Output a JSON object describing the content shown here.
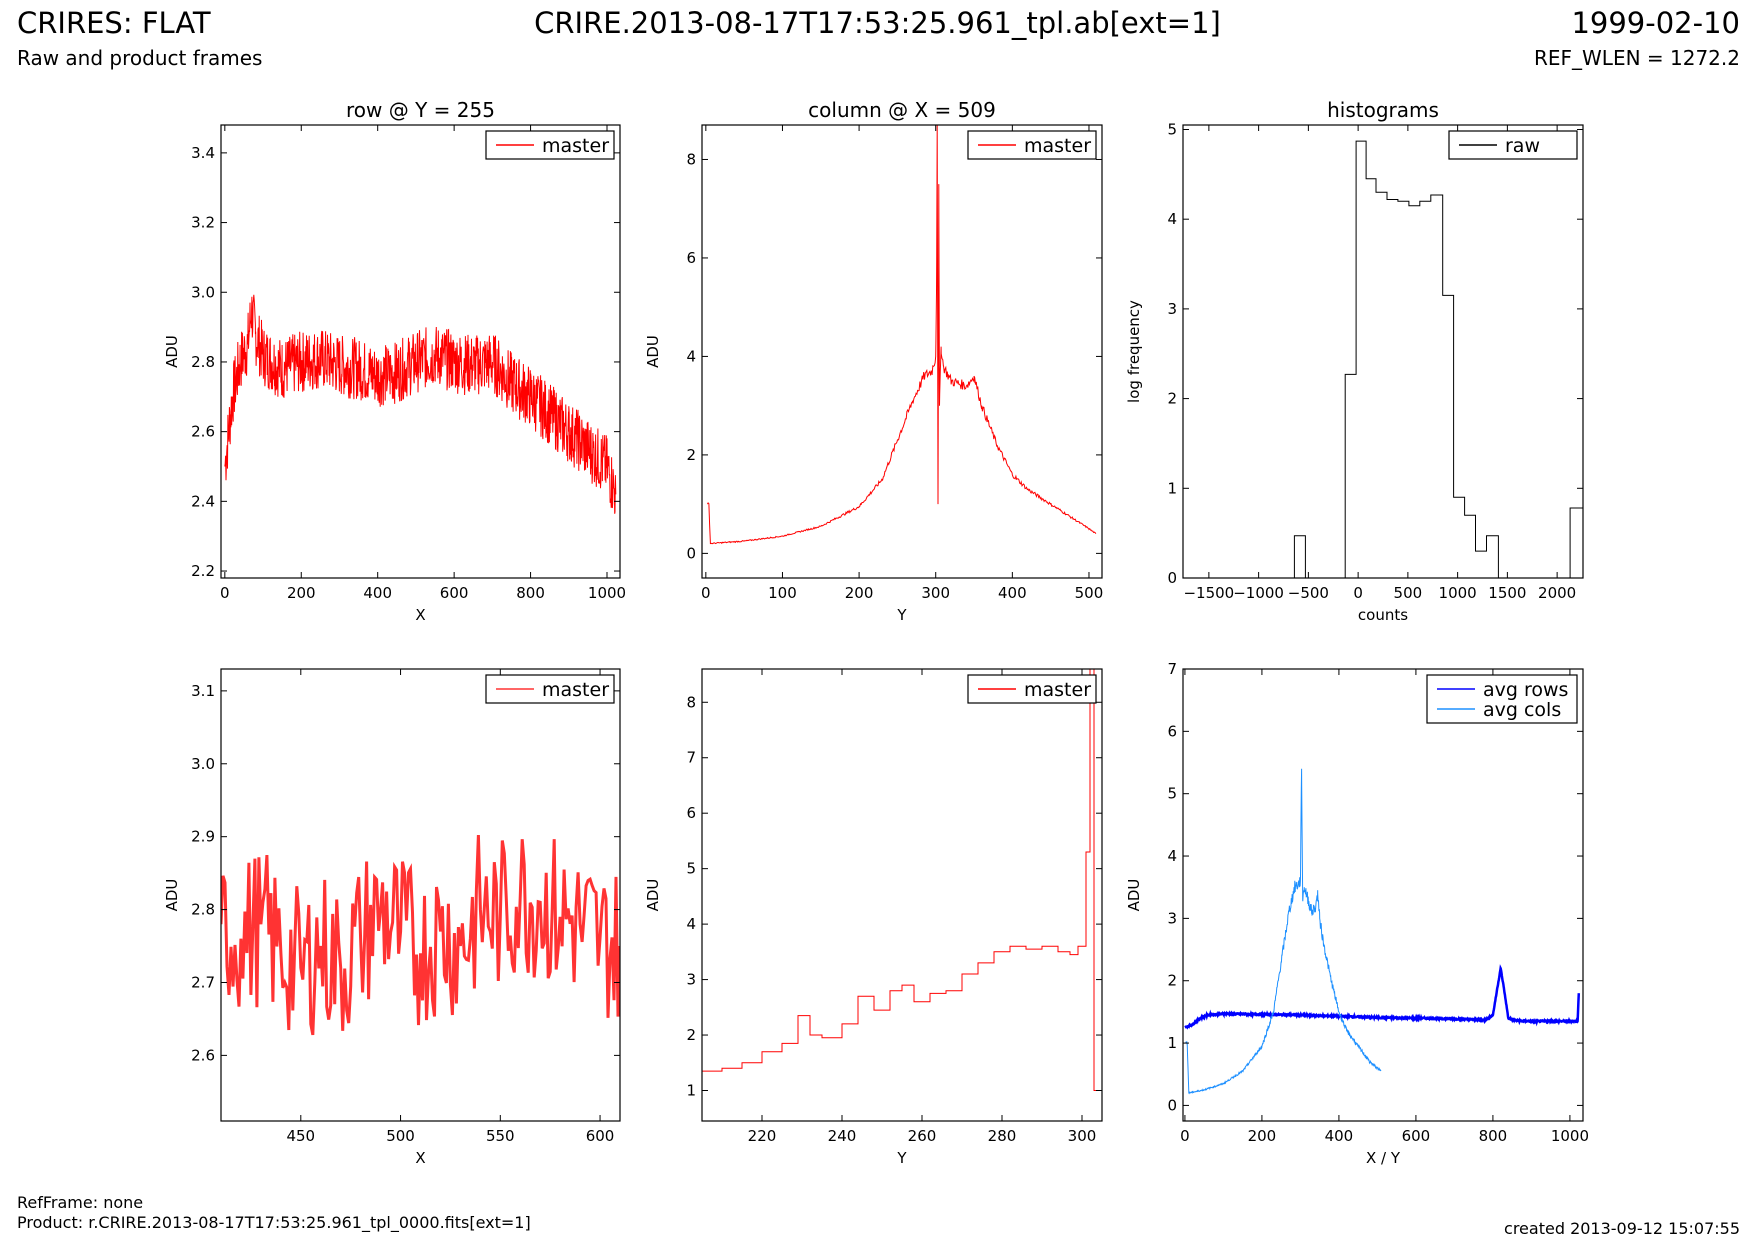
{
  "header": {
    "title": "CRIRES: FLAT",
    "subtitle": "Raw and product frames",
    "center": "CRIRE.2013-08-17T17:53:25.961_tpl.ab[ext=1]",
    "date": "1999-02-10",
    "ref_wlen": "REF_WLEN = 1272.2"
  },
  "footer": {
    "ref_frame": "RefFrame: none",
    "product": "Product: r.CRIRE.2013-08-17T17:53:25.961_tpl_0000.fits[ext=1]",
    "created": "created 2013-09-12 15:07:55"
  },
  "colors": {
    "red": "#ff0000",
    "red_light": "#ff3333",
    "blue": "#0000ff",
    "lightblue": "#1e90ff",
    "black": "#000000"
  },
  "chart_data": [
    {
      "type": "line",
      "title": "row @ Y = 255",
      "xlabel": "X",
      "ylabel": "ADU",
      "xlim": [
        -10,
        1034
      ],
      "ylim": [
        2.18,
        3.48
      ],
      "xticks": [
        0,
        200,
        400,
        600,
        800,
        1000
      ],
      "yticks": [
        2.2,
        2.4,
        2.6,
        2.8,
        3.0,
        3.2,
        3.4
      ],
      "ytick_labels": [
        "2.2",
        "2.4",
        "2.6",
        "2.8",
        "3.0",
        "3.2",
        "3.4"
      ],
      "legend": "top-right",
      "series": [
        {
          "name": "master",
          "color": "#ff0000",
          "x": [
            0,
            20,
            40,
            60,
            70,
            80,
            100,
            150,
            200,
            250,
            300,
            350,
            400,
            450,
            500,
            550,
            600,
            650,
            700,
            750,
            800,
            850,
            900,
            950,
            1000,
            1023
          ],
          "y": [
            2.5,
            2.7,
            2.8,
            2.85,
            2.95,
            2.88,
            2.82,
            2.78,
            2.8,
            2.81,
            2.79,
            2.78,
            2.76,
            2.77,
            2.8,
            2.82,
            2.8,
            2.79,
            2.8,
            2.74,
            2.7,
            2.65,
            2.6,
            2.55,
            2.5,
            2.42
          ]
        }
      ]
    },
    {
      "type": "line",
      "title": "column @ X = 509",
      "xlabel": "Y",
      "ylabel": "ADU",
      "xlim": [
        -5,
        517
      ],
      "ylim": [
        -0.5,
        8.7
      ],
      "xticks": [
        0,
        100,
        200,
        300,
        400,
        500
      ],
      "yticks": [
        0,
        2,
        4,
        6,
        8
      ],
      "ytick_labels": [
        "0",
        "2",
        "4",
        "6",
        "8"
      ],
      "legend": "top-right",
      "series": [
        {
          "name": "master",
          "color": "#ff0000",
          "x": [
            2,
            4,
            6,
            50,
            100,
            150,
            200,
            230,
            250,
            270,
            285,
            295,
            300,
            301,
            302,
            303,
            304,
            305,
            306,
            307,
            310,
            320,
            340,
            350,
            360,
            380,
            400,
            420,
            450,
            480,
            500,
            509
          ],
          "y": [
            1.0,
            1.0,
            0.2,
            0.25,
            0.35,
            0.55,
            0.95,
            1.5,
            2.3,
            3.1,
            3.6,
            3.7,
            4.0,
            5.3,
            8.7,
            1.0,
            7.5,
            3.0,
            3.7,
            4.2,
            3.8,
            3.5,
            3.4,
            3.6,
            3.0,
            2.2,
            1.6,
            1.3,
            1.0,
            0.7,
            0.5,
            0.4
          ]
        }
      ]
    },
    {
      "type": "line",
      "title": "histograms",
      "xlabel": "counts",
      "ylabel": "log frequency",
      "xlim": [
        -1760,
        2260
      ],
      "ylim": [
        0,
        5.05
      ],
      "xticks": [
        -1500,
        -1000,
        -500,
        0,
        500,
        1000,
        1500,
        2000
      ],
      "yticks": [
        0,
        1,
        2,
        3,
        4,
        5
      ],
      "ytick_labels": [
        "0",
        "1",
        "2",
        "3",
        "4",
        "5"
      ],
      "legend": "top-right",
      "series": [
        {
          "name": "raw",
          "color": "#000000",
          "step": true,
          "x": [
            -1760,
            -640,
            -640,
            -530,
            -530,
            -130,
            -130,
            -20,
            -20,
            80,
            80,
            180,
            180,
            290,
            290,
            400,
            400,
            510,
            510,
            620,
            620,
            730,
            730,
            850,
            850,
            960,
            960,
            1070,
            1070,
            1180,
            1180,
            1290,
            1290,
            1410,
            1410,
            2130,
            2130,
            2260
          ],
          "y": [
            0,
            0,
            0.47,
            0.47,
            0,
            0,
            2.27,
            2.27,
            4.87,
            4.87,
            4.45,
            4.45,
            4.3,
            4.3,
            4.22,
            4.22,
            4.2,
            4.2,
            4.15,
            4.15,
            4.2,
            4.2,
            4.27,
            4.27,
            3.15,
            3.15,
            0.9,
            0.9,
            0.7,
            0.7,
            0.3,
            0.3,
            0.47,
            0.47,
            0,
            0,
            0.78,
            0.78
          ]
        }
      ]
    },
    {
      "type": "line",
      "xlabel": "X",
      "ylabel": "ADU",
      "xlim": [
        410,
        610
      ],
      "ylim": [
        2.51,
        3.13
      ],
      "xticks": [
        450,
        500,
        550,
        600
      ],
      "yticks": [
        2.6,
        2.7,
        2.8,
        2.9,
        3.0,
        3.1
      ],
      "ytick_labels": [
        "2.6",
        "2.7",
        "2.8",
        "2.9",
        "3.0",
        "3.1"
      ],
      "legend": "top-right",
      "series": [
        {
          "name": "master",
          "color": "#ff3333",
          "x": [
            410,
            420,
            430,
            440,
            450,
            460,
            470,
            480,
            490,
            500,
            510,
            520,
            530,
            540,
            550,
            560,
            570,
            580,
            590,
            600,
            610
          ],
          "y": [
            2.78,
            2.76,
            2.78,
            2.74,
            2.72,
            2.75,
            2.72,
            2.76,
            2.8,
            2.77,
            2.74,
            2.77,
            2.75,
            2.8,
            2.79,
            2.82,
            2.81,
            2.79,
            2.78,
            2.76,
            2.75
          ]
        }
      ]
    },
    {
      "type": "line",
      "xlabel": "Y",
      "ylabel": "ADU",
      "xlim": [
        205,
        305
      ],
      "ylim": [
        0.45,
        8.6
      ],
      "xticks": [
        220,
        240,
        260,
        280,
        300
      ],
      "yticks": [
        1,
        2,
        3,
        4,
        5,
        6,
        7,
        8
      ],
      "ytick_labels": [
        "1",
        "2",
        "3",
        "4",
        "5",
        "6",
        "7",
        "8"
      ],
      "legend": "top-right",
      "series": [
        {
          "name": "master",
          "color": "#ff0000",
          "step": true,
          "x": [
            205,
            210,
            215,
            220,
            225,
            229,
            232,
            235,
            240,
            244,
            248,
            252,
            255,
            258,
            262,
            266,
            270,
            274,
            278,
            282,
            286,
            290,
            294,
            297,
            299,
            301,
            302,
            303,
            303.5,
            305
          ],
          "y": [
            1.35,
            1.4,
            1.5,
            1.7,
            1.85,
            2.35,
            2.0,
            1.95,
            2.2,
            2.7,
            2.45,
            2.8,
            2.9,
            2.6,
            2.75,
            2.8,
            3.1,
            3.3,
            3.5,
            3.6,
            3.55,
            3.6,
            3.5,
            3.45,
            3.6,
            5.3,
            8.6,
            1.0,
            1.0,
            1.0
          ]
        }
      ]
    },
    {
      "type": "line",
      "xlabel": "X / Y",
      "ylabel": "ADU",
      "xlim": [
        -5,
        1034
      ],
      "ylim": [
        -0.25,
        7.0
      ],
      "xticks": [
        0,
        200,
        400,
        600,
        800,
        1000
      ],
      "yticks": [
        0,
        1,
        2,
        3,
        4,
        5,
        6,
        7
      ],
      "ytick_labels": [
        "0",
        "1",
        "2",
        "3",
        "4",
        "5",
        "6",
        "7"
      ],
      "legend": "top-right",
      "series": [
        {
          "name": "avg rows",
          "color": "#0000ff",
          "x": [
            0,
            20,
            40,
            60,
            100,
            200,
            300,
            400,
            500,
            600,
            700,
            780,
            800,
            812,
            820,
            828,
            840,
            860,
            900,
            1000,
            1020,
            1023
          ],
          "y": [
            1.25,
            1.3,
            1.4,
            1.45,
            1.47,
            1.46,
            1.45,
            1.43,
            1.41,
            1.4,
            1.39,
            1.37,
            1.45,
            1.9,
            2.2,
            1.9,
            1.4,
            1.36,
            1.35,
            1.35,
            1.35,
            1.8
          ]
        },
        {
          "name": "avg cols",
          "color": "#1e90ff",
          "x": [
            2,
            6,
            10,
            50,
            100,
            150,
            200,
            230,
            250,
            270,
            285,
            295,
            300,
            303,
            306,
            310,
            320,
            330,
            340,
            345,
            350,
            360,
            380,
            400,
            420,
            450,
            480,
            509
          ],
          "y": [
            1.0,
            1.0,
            0.2,
            0.25,
            0.35,
            0.55,
            0.95,
            1.5,
            2.3,
            3.1,
            3.5,
            3.55,
            3.6,
            5.4,
            3.3,
            3.5,
            3.3,
            3.1,
            3.2,
            3.4,
            3.0,
            2.6,
            2.0,
            1.5,
            1.2,
            0.95,
            0.7,
            0.55
          ]
        }
      ]
    }
  ]
}
